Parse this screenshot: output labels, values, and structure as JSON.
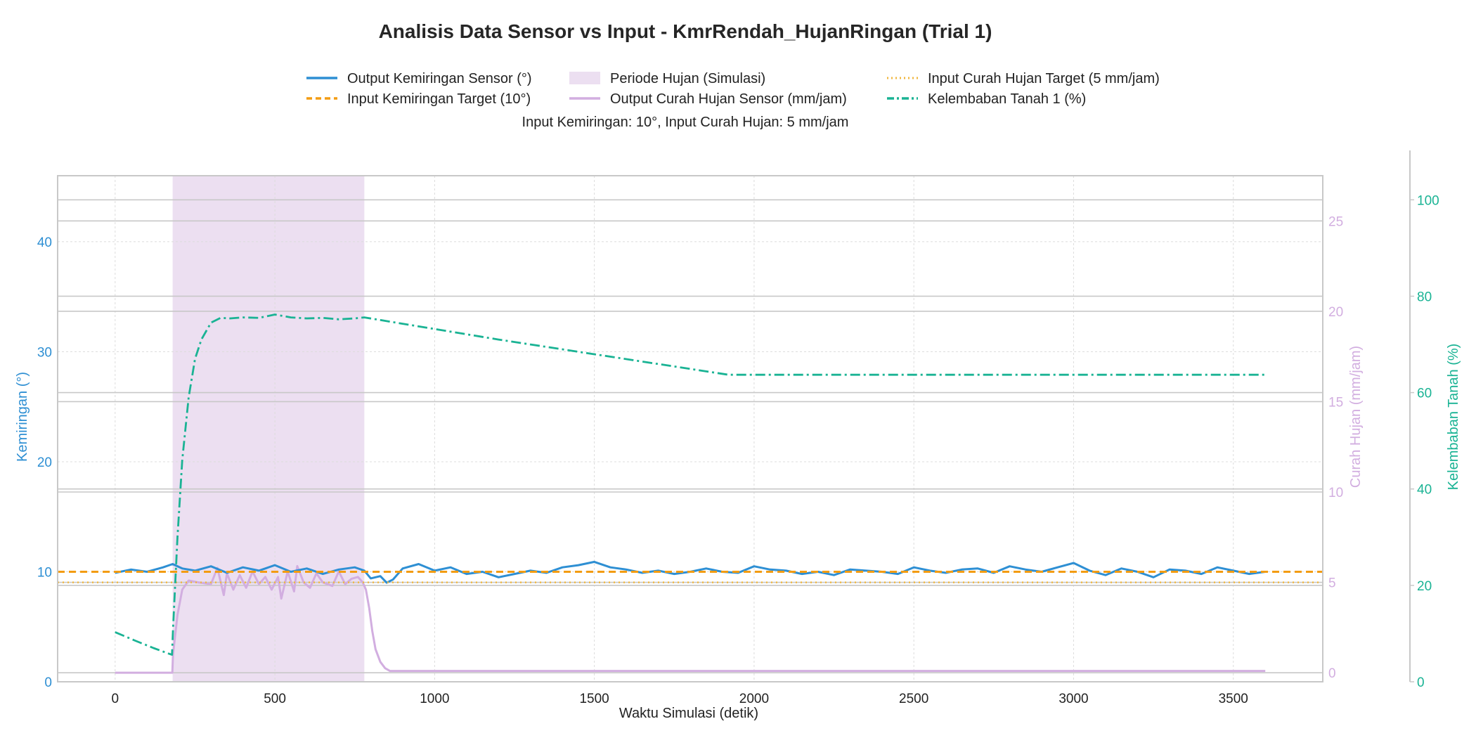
{
  "chart_data": {
    "type": "line",
    "title": "Analisis Data Sensor vs Input - KmrRendah_HujanRingan (Trial 1)",
    "subtitle": "Input Kemiringan: 10°, Input Curah Hujan: 5 mm/jam",
    "xlabel": "Waktu Simulasi (detik)",
    "xlim": [
      -180,
      3780
    ],
    "xticks": [
      0,
      500,
      1000,
      1500,
      2000,
      2500,
      3000,
      3500
    ],
    "axes": {
      "left": {
        "label": "Kemiringan (°)",
        "ylim": [
          0,
          46
        ],
        "ticks": [
          0,
          10,
          20,
          30,
          40
        ],
        "color": "#2e8fd3"
      },
      "right1": {
        "label": "Curah Hujan (mm/jam)",
        "ylim": [
          -0.5,
          27.5
        ],
        "ticks": [
          0,
          5,
          10,
          15,
          20,
          25
        ],
        "color": "#d2aee0"
      },
      "right2": {
        "label": "Kelembaban Tanah (%)",
        "ylim": [
          0,
          105
        ],
        "ticks": [
          0,
          20,
          40,
          60,
          80,
          100
        ],
        "color": "#1ab394"
      }
    },
    "grid": true,
    "legend_position": "top-center",
    "rain_period": {
      "label": "Periode Hujan (Simulasi)",
      "start": 180,
      "end": 780,
      "color": "#ecdff1"
    },
    "series": [
      {
        "name": "Output Kemiringan Sensor (°)",
        "axis": "left",
        "style": "solid",
        "color": "#2e8fd3",
        "x": [
          0,
          50,
          100,
          150,
          180,
          210,
          250,
          300,
          350,
          400,
          450,
          500,
          550,
          600,
          650,
          700,
          750,
          780,
          800,
          830,
          850,
          870,
          900,
          950,
          1000,
          1050,
          1100,
          1150,
          1200,
          1250,
          1300,
          1350,
          1400,
          1450,
          1500,
          1550,
          1600,
          1650,
          1700,
          1750,
          1800,
          1850,
          1900,
          1950,
          2000,
          2050,
          2100,
          2150,
          2200,
          2250,
          2300,
          2350,
          2400,
          2450,
          2500,
          2550,
          2600,
          2650,
          2700,
          2750,
          2800,
          2850,
          2900,
          2950,
          3000,
          3050,
          3100,
          3150,
          3200,
          3250,
          3300,
          3350,
          3400,
          3450,
          3500,
          3550,
          3600
        ],
        "values": [
          9.9,
          10.2,
          10.0,
          10.4,
          10.7,
          10.3,
          10.1,
          10.5,
          9.9,
          10.4,
          10.1,
          10.6,
          10.0,
          10.3,
          9.8,
          10.2,
          10.4,
          10.1,
          9.4,
          9.6,
          9.0,
          9.3,
          10.3,
          10.7,
          10.1,
          10.4,
          9.8,
          10.0,
          9.5,
          9.8,
          10.1,
          9.9,
          10.4,
          10.6,
          10.9,
          10.4,
          10.2,
          9.9,
          10.1,
          9.8,
          10.0,
          10.3,
          10.0,
          9.9,
          10.5,
          10.2,
          10.1,
          9.8,
          10.0,
          9.7,
          10.2,
          10.1,
          10.0,
          9.8,
          10.4,
          10.1,
          9.9,
          10.2,
          10.3,
          9.9,
          10.5,
          10.2,
          10.0,
          10.4,
          10.8,
          10.1,
          9.7,
          10.3,
          10.0,
          9.5,
          10.2,
          10.1,
          9.8,
          10.4,
          10.1,
          9.8,
          10.0
        ]
      },
      {
        "name": "Input Kemiringan Target (10°)",
        "axis": "left",
        "style": "dashed",
        "color": "#f39c12",
        "x": [
          -180,
          3780
        ],
        "values": [
          10,
          10
        ]
      },
      {
        "name": "Output Curah Hujan Sensor (mm/jam)",
        "axis": "right1",
        "style": "solid",
        "color": "#d2aee0",
        "x": [
          0,
          100,
          179,
          181,
          195,
          210,
          230,
          260,
          300,
          320,
          340,
          350,
          370,
          390,
          410,
          430,
          450,
          470,
          490,
          510,
          520,
          540,
          560,
          570,
          590,
          610,
          630,
          650,
          680,
          700,
          720,
          740,
          760,
          775,
          785,
          795,
          805,
          815,
          830,
          845,
          860,
          880,
          1000,
          2000,
          3000,
          3600
        ],
        "values": [
          0.0,
          0.0,
          0.0,
          1.0,
          3.2,
          4.6,
          5.1,
          5.0,
          4.9,
          5.8,
          4.3,
          5.5,
          4.6,
          5.4,
          4.7,
          5.6,
          4.9,
          5.3,
          4.6,
          5.3,
          4.1,
          5.6,
          4.5,
          5.9,
          5.0,
          4.7,
          5.5,
          5.0,
          4.8,
          5.6,
          4.9,
          5.2,
          5.3,
          5.0,
          4.6,
          3.6,
          2.3,
          1.3,
          0.6,
          0.25,
          0.1,
          0.1,
          0.1,
          0.1,
          0.1,
          0.1
        ]
      },
      {
        "name": "Input Curah Hujan Target (5 mm/jam)",
        "axis": "right1",
        "style": "dotted",
        "color": "#f0b740",
        "x": [
          -180,
          3780
        ],
        "values": [
          5,
          5
        ]
      },
      {
        "name": "Kelembaban Tanah 1 (%)",
        "axis": "right2",
        "style": "dashdot",
        "color": "#1ab394",
        "x": [
          0,
          60,
          120,
          178,
          182,
          195,
          210,
          230,
          250,
          270,
          300,
          330,
          360,
          400,
          450,
          500,
          550,
          600,
          650,
          700,
          750,
          780,
          1200,
          1920,
          3600
        ],
        "values": [
          10.3,
          8.6,
          7.0,
          5.6,
          12,
          30,
          46,
          59,
          67,
          71,
          74.5,
          75.5,
          75.4,
          75.6,
          75.5,
          76.2,
          75.6,
          75.4,
          75.5,
          75.2,
          75.4,
          75.6,
          71,
          63.7,
          63.7
        ]
      }
    ]
  }
}
